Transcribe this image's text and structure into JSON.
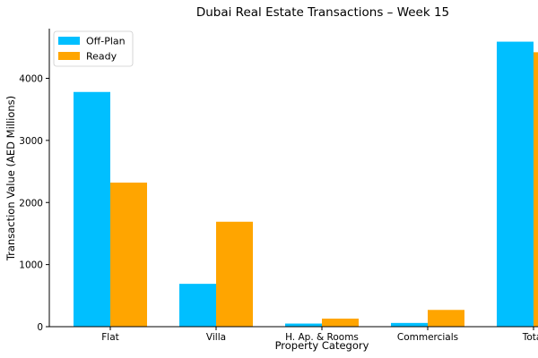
{
  "chart_data": {
    "type": "bar",
    "title": "Dubai Real Estate Transactions – Week 15",
    "xlabel": "Property Category",
    "ylabel": "Transaction Value (AED Millions)",
    "categories": [
      "Flat",
      "Villa",
      "H. Ap. & Rooms",
      "Commercials",
      "Total"
    ],
    "series": [
      {
        "name": "Off-Plan",
        "values": [
          3780,
          690,
          50,
          60,
          4590
        ],
        "color": "#00BFFF"
      },
      {
        "name": "Ready",
        "values": [
          2320,
          1690,
          130,
          270,
          4420
        ],
        "color": "#FFA500"
      }
    ],
    "ylim": [
      0,
      4800
    ],
    "yticks": [
      0,
      1000,
      2000,
      3000,
      4000
    ],
    "legend": "top-left",
    "grid": false
  }
}
